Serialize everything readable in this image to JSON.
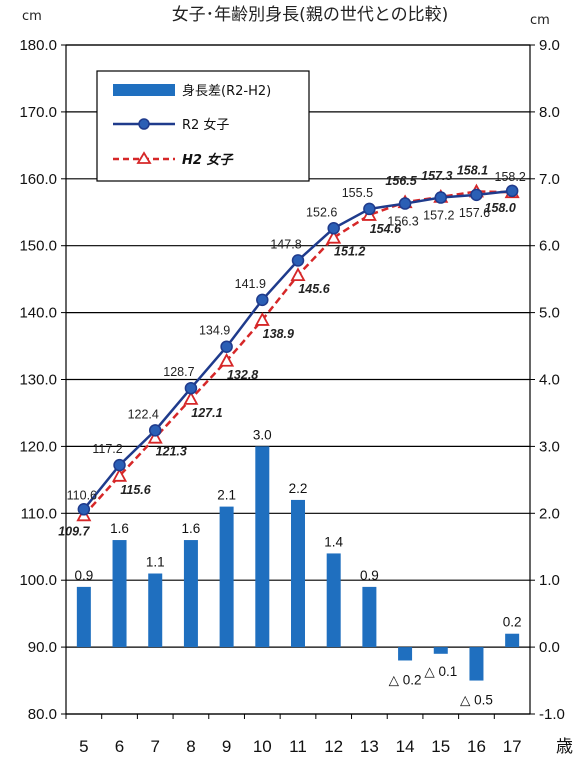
{
  "chart_data": {
    "type": "bar+line",
    "title": "女子･年齢別身長(親の世代との比較)",
    "left_unit": "cm",
    "right_unit": "cm",
    "x_unit": "歳",
    "categories": [
      "5",
      "6",
      "7",
      "8",
      "9",
      "10",
      "11",
      "12",
      "13",
      "14",
      "15",
      "16",
      "17"
    ],
    "left_axis": {
      "min": 80,
      "max": 180,
      "step": 10,
      "ticks": [
        "80.0",
        "90.0",
        "100.0",
        "110.0",
        "120.0",
        "130.0",
        "140.0",
        "150.0",
        "160.0",
        "170.0",
        "180.0"
      ]
    },
    "right_axis": {
      "min": -1,
      "max": 9,
      "step": 1,
      "ticks": [
        "-1.0",
        "0.0",
        "1.0",
        "2.0",
        "3.0",
        "4.0",
        "5.0",
        "6.0",
        "7.0",
        "8.0",
        "9.0"
      ]
    },
    "grid": true,
    "legend_position": "top-left",
    "series": [
      {
        "name": "身長差(R2-H2)",
        "kind": "bar",
        "axis": "right",
        "color": "#1f6fbf",
        "values": [
          0.9,
          1.6,
          1.1,
          1.6,
          2.1,
          3.0,
          2.2,
          1.4,
          0.9,
          -0.2,
          -0.1,
          -0.5,
          0.2
        ],
        "labels": [
          "0.9",
          "1.6",
          "1.1",
          "1.6",
          "2.1",
          "3.0",
          "2.2",
          "1.4",
          "0.9",
          "△ 0.2",
          "△ 0.1",
          "△ 0.5",
          "0.2"
        ]
      },
      {
        "name": "R2 女子",
        "kind": "line",
        "axis": "left",
        "color": "#1f3b8c",
        "values": [
          110.6,
          117.2,
          122.4,
          128.7,
          134.9,
          141.9,
          147.8,
          152.6,
          155.5,
          156.3,
          157.2,
          157.6,
          158.2
        ],
        "labels": [
          "110.6",
          "117.2",
          "122.4",
          "128.7",
          "134.9",
          "141.9",
          "147.8",
          "152.6",
          "155.5",
          "156.3",
          "157.2",
          "157.6",
          "158.2"
        ]
      },
      {
        "name": "H2 女子",
        "kind": "line",
        "axis": "left",
        "color": "#d62728",
        "values": [
          109.7,
          115.6,
          121.3,
          127.1,
          132.8,
          138.9,
          145.6,
          151.2,
          154.6,
          156.5,
          157.3,
          158.1,
          158.0
        ],
        "labels": [
          "109.7",
          "115.6",
          "121.3",
          "127.1",
          "132.8",
          "138.9",
          "145.6",
          "151.2",
          "154.6",
          "156.5",
          "157.3",
          "158.1",
          "158.0"
        ]
      }
    ]
  }
}
